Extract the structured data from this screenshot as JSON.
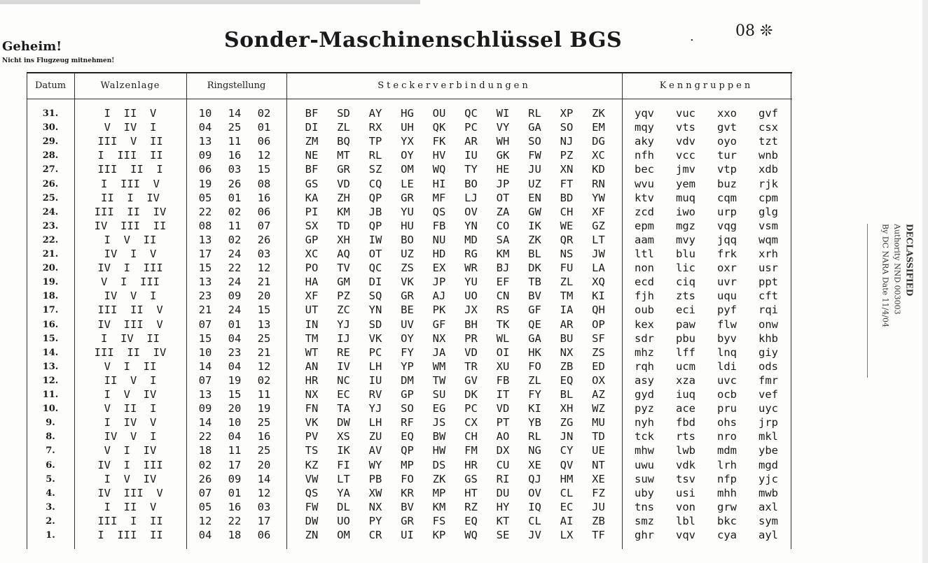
{
  "header": {
    "secret": "Geheim!",
    "warning": "Nicht ins Flugzeug mitnehmen!",
    "title": "Sonder-Maschinenschlüssel BGS",
    "page_number": "08 ❊",
    "dot": "."
  },
  "columns": {
    "datum": "Datum",
    "walzenlage": "Walzenlage",
    "ringstellung": "Ringstellung",
    "stecker": "Steckerverbindungen",
    "kenngruppen": "Kenngruppen"
  },
  "rows": [
    {
      "d": "31.",
      "w": "I  II  V",
      "r": [
        "10",
        "14",
        "02"
      ],
      "s": [
        "BF",
        "SD",
        "AY",
        "HG",
        "OU",
        "QC",
        "WI",
        "RL",
        "XP",
        "ZK"
      ],
      "k": [
        "yqv",
        "vuc",
        "xxo",
        "gvf"
      ]
    },
    {
      "d": "30.",
      "w": "V  IV  I",
      "r": [
        "04",
        "25",
        "01"
      ],
      "s": [
        "DI",
        "ZL",
        "RX",
        "UH",
        "QK",
        "PC",
        "VY",
        "GA",
        "SO",
        "EM"
      ],
      "k": [
        "mqy",
        "vts",
        "gvt",
        "csx"
      ]
    },
    {
      "d": "29.",
      "w": "III  V  II",
      "r": [
        "13",
        "11",
        "06"
      ],
      "s": [
        "ZM",
        "BQ",
        "TP",
        "YX",
        "FK",
        "AR",
        "WH",
        "SO",
        "NJ",
        "DG"
      ],
      "k": [
        "aky",
        "vdv",
        "oyo",
        "tzt"
      ]
    },
    {
      "d": "28.",
      "w": "I  III  II",
      "r": [
        "09",
        "16",
        "12"
      ],
      "s": [
        "NE",
        "MT",
        "RL",
        "OY",
        "HV",
        "IU",
        "GK",
        "FW",
        "PZ",
        "XC"
      ],
      "k": [
        "nfh",
        "vcc",
        "tur",
        "wnb"
      ]
    },
    {
      "d": "27.",
      "w": "III  II  I",
      "r": [
        "06",
        "03",
        "15"
      ],
      "s": [
        "BF",
        "GR",
        "SZ",
        "OM",
        "WQ",
        "TY",
        "HE",
        "JU",
        "XN",
        "KD"
      ],
      "k": [
        "bec",
        "jmv",
        "vtp",
        "xdb"
      ]
    },
    {
      "d": "26.",
      "w": "I  III  V",
      "r": [
        "19",
        "26",
        "08"
      ],
      "s": [
        "GS",
        "VD",
        "CQ",
        "LE",
        "HI",
        "BO",
        "JP",
        "UZ",
        "FT",
        "RN"
      ],
      "k": [
        "wvu",
        "yem",
        "buz",
        "rjk"
      ]
    },
    {
      "d": "25.",
      "w": "II  I  IV",
      "r": [
        "05",
        "01",
        "16"
      ],
      "s": [
        "KA",
        "ZH",
        "QP",
        "GR",
        "MF",
        "LJ",
        "OT",
        "EN",
        "BD",
        "YW"
      ],
      "k": [
        "ktv",
        "muq",
        "cqm",
        "cpm"
      ]
    },
    {
      "d": "24.",
      "w": "III  II  IV",
      "r": [
        "22",
        "02",
        "06"
      ],
      "s": [
        "PI",
        "KM",
        "JB",
        "YU",
        "QS",
        "OV",
        "ZA",
        "GW",
        "CH",
        "XF"
      ],
      "k": [
        "zcd",
        "iwo",
        "urp",
        "glg"
      ]
    },
    {
      "d": "23.",
      "w": "IV  III  II",
      "r": [
        "08",
        "11",
        "07"
      ],
      "s": [
        "SX",
        "TD",
        "QP",
        "HU",
        "FB",
        "YN",
        "CO",
        "IK",
        "WE",
        "GZ"
      ],
      "k": [
        "epm",
        "mgz",
        "vqg",
        "vsm"
      ]
    },
    {
      "d": "22.",
      "w": "I  V  II",
      "r": [
        "13",
        "02",
        "26"
      ],
      "s": [
        "GP",
        "XH",
        "IW",
        "BO",
        "NU",
        "MD",
        "SA",
        "ZK",
        "QR",
        "LT"
      ],
      "k": [
        "aam",
        "mvy",
        "jqq",
        "wqm"
      ]
    },
    {
      "d": "21.",
      "w": "IV  I  V",
      "r": [
        "17",
        "24",
        "03"
      ],
      "s": [
        "XC",
        "AQ",
        "OT",
        "UZ",
        "HD",
        "RG",
        "KM",
        "BL",
        "NS",
        "JW"
      ],
      "k": [
        "ltl",
        "blu",
        "frk",
        "xrh"
      ]
    },
    {
      "d": "20.",
      "w": "IV  I  III",
      "r": [
        "15",
        "22",
        "12"
      ],
      "s": [
        "PO",
        "TV",
        "QC",
        "ZS",
        "EX",
        "WR",
        "BJ",
        "DK",
        "FU",
        "LA"
      ],
      "k": [
        "non",
        "lic",
        "oxr",
        "usr"
      ]
    },
    {
      "d": "19.",
      "w": "V  I  III",
      "r": [
        "13",
        "24",
        "21"
      ],
      "s": [
        "HA",
        "GM",
        "DI",
        "VK",
        "JP",
        "YU",
        "EF",
        "TB",
        "ZL",
        "XQ"
      ],
      "k": [
        "ecd",
        "ciq",
        "uvr",
        "ppt"
      ]
    },
    {
      "d": "18.",
      "w": "IV  V  I",
      "r": [
        "23",
        "09",
        "20"
      ],
      "s": [
        "XF",
        "PZ",
        "SQ",
        "GR",
        "AJ",
        "UO",
        "CN",
        "BV",
        "TM",
        "KI"
      ],
      "k": [
        "fjh",
        "zts",
        "uqu",
        "cft"
      ]
    },
    {
      "d": "17.",
      "w": "III  II  V",
      "r": [
        "21",
        "24",
        "15"
      ],
      "s": [
        "UT",
        "ZC",
        "YN",
        "BE",
        "PK",
        "JX",
        "RS",
        "GF",
        "IA",
        "QH"
      ],
      "k": [
        "oub",
        "eci",
        "pyf",
        "rqi"
      ]
    },
    {
      "d": "16.",
      "w": "IV  III  V",
      "r": [
        "07",
        "01",
        "13"
      ],
      "s": [
        "IN",
        "YJ",
        "SD",
        "UV",
        "GF",
        "BH",
        "TK",
        "QE",
        "AR",
        "OP"
      ],
      "k": [
        "kex",
        "paw",
        "flw",
        "onw"
      ]
    },
    {
      "d": "15.",
      "w": "I  IV  II",
      "r": [
        "15",
        "04",
        "25"
      ],
      "s": [
        "TM",
        "IJ",
        "VK",
        "OY",
        "NX",
        "PR",
        "WL",
        "GA",
        "BU",
        "SF"
      ],
      "k": [
        "sdr",
        "pbu",
        "byv",
        "khb"
      ]
    },
    {
      "d": "14.",
      "w": "III  II  IV",
      "r": [
        "10",
        "23",
        "21"
      ],
      "s": [
        "WT",
        "RE",
        "PC",
        "FY",
        "JA",
        "VD",
        "OI",
        "HK",
        "NX",
        "ZS"
      ],
      "k": [
        "mhz",
        "lff",
        "lnq",
        "giy"
      ]
    },
    {
      "d": "13.",
      "w": "V  I  II",
      "r": [
        "14",
        "04",
        "12"
      ],
      "s": [
        "AN",
        "IV",
        "LH",
        "YP",
        "WM",
        "TR",
        "XU",
        "FO",
        "ZB",
        "ED"
      ],
      "k": [
        "rqh",
        "ucm",
        "ldi",
        "ods"
      ]
    },
    {
      "d": "12.",
      "w": "II  V  I",
      "r": [
        "07",
        "19",
        "02"
      ],
      "s": [
        "HR",
        "NC",
        "IU",
        "DM",
        "TW",
        "GV",
        "FB",
        "ZL",
        "EQ",
        "OX"
      ],
      "k": [
        "asy",
        "xza",
        "uvc",
        "fmr"
      ]
    },
    {
      "d": "11.",
      "w": "I  V  IV",
      "r": [
        "13",
        "15",
        "11"
      ],
      "s": [
        "NX",
        "EC",
        "RV",
        "GP",
        "SU",
        "DK",
        "IT",
        "FY",
        "BL",
        "AZ"
      ],
      "k": [
        "gyd",
        "iuq",
        "ocb",
        "vef"
      ]
    },
    {
      "d": "10.",
      "w": "V  II  I",
      "r": [
        "09",
        "20",
        "19"
      ],
      "s": [
        "FN",
        "TA",
        "YJ",
        "SO",
        "EG",
        "PC",
        "VD",
        "KI",
        "XH",
        "WZ"
      ],
      "k": [
        "pyz",
        "ace",
        "pru",
        "uyc"
      ]
    },
    {
      "d": "9.",
      "w": "I  IV  V",
      "r": [
        "14",
        "10",
        "25"
      ],
      "s": [
        "VK",
        "DW",
        "LH",
        "RF",
        "JS",
        "CX",
        "PT",
        "YB",
        "ZG",
        "MU"
      ],
      "k": [
        "nyh",
        "fbd",
        "ohs",
        "jrp"
      ]
    },
    {
      "d": "8.",
      "w": "IV  V  I",
      "r": [
        "22",
        "04",
        "16"
      ],
      "s": [
        "PV",
        "XS",
        "ZU",
        "EQ",
        "BW",
        "CH",
        "AO",
        "RL",
        "JN",
        "TD"
      ],
      "k": [
        "tck",
        "rts",
        "nro",
        "mkl"
      ]
    },
    {
      "d": "7.",
      "w": "V  I  IV",
      "r": [
        "18",
        "11",
        "25"
      ],
      "s": [
        "TS",
        "IK",
        "AV",
        "QP",
        "HW",
        "FM",
        "DX",
        "NG",
        "CY",
        "UE"
      ],
      "k": [
        "mhw",
        "lwb",
        "mdm",
        "ybe"
      ]
    },
    {
      "d": "6.",
      "w": "IV  I  III",
      "r": [
        "02",
        "17",
        "20"
      ],
      "s": [
        "KZ",
        "FI",
        "WY",
        "MP",
        "DS",
        "HR",
        "CU",
        "XE",
        "QV",
        "NT"
      ],
      "k": [
        "uwu",
        "vdk",
        "lrh",
        "mgd"
      ]
    },
    {
      "d": "5.",
      "w": "I  V  IV",
      "r": [
        "26",
        "09",
        "14"
      ],
      "s": [
        "VW",
        "LT",
        "PB",
        "FO",
        "ZK",
        "GS",
        "RI",
        "QJ",
        "HM",
        "XE"
      ],
      "k": [
        "suw",
        "tsv",
        "nfp",
        "yjc"
      ]
    },
    {
      "d": "4.",
      "w": "IV  III  V",
      "r": [
        "07",
        "01",
        "12"
      ],
      "s": [
        "QS",
        "YA",
        "XW",
        "KR",
        "MP",
        "HT",
        "DU",
        "OV",
        "CL",
        "FZ"
      ],
      "k": [
        "uby",
        "usi",
        "mhh",
        "mwb"
      ]
    },
    {
      "d": "3.",
      "w": "I  II  V",
      "r": [
        "05",
        "16",
        "03"
      ],
      "s": [
        "FW",
        "DL",
        "NX",
        "BV",
        "KM",
        "RZ",
        "HY",
        "IQ",
        "EC",
        "JU"
      ],
      "k": [
        "tns",
        "von",
        "grw",
        "axl"
      ]
    },
    {
      "d": "2.",
      "w": "III  I  II",
      "r": [
        "12",
        "22",
        "17"
      ],
      "s": [
        "DW",
        "UO",
        "PY",
        "GR",
        "FS",
        "EQ",
        "KT",
        "CL",
        "AI",
        "ZB"
      ],
      "k": [
        "smz",
        "lbl",
        "bkc",
        "sym"
      ]
    },
    {
      "d": "1.",
      "w": "I  III  II",
      "r": [
        "04",
        "18",
        "06"
      ],
      "s": [
        "ZN",
        "OM",
        "CR",
        "UI",
        "KP",
        "WQ",
        "SE",
        "JV",
        "LX",
        "TF"
      ],
      "k": [
        "ghr",
        "vqv",
        "cya",
        "ayl"
      ]
    }
  ],
  "stamp": {
    "title": "DECLASSIFIED",
    "authority": "Authority NND 003003",
    "by": "By DC  NARA Date 11/4/04"
  }
}
